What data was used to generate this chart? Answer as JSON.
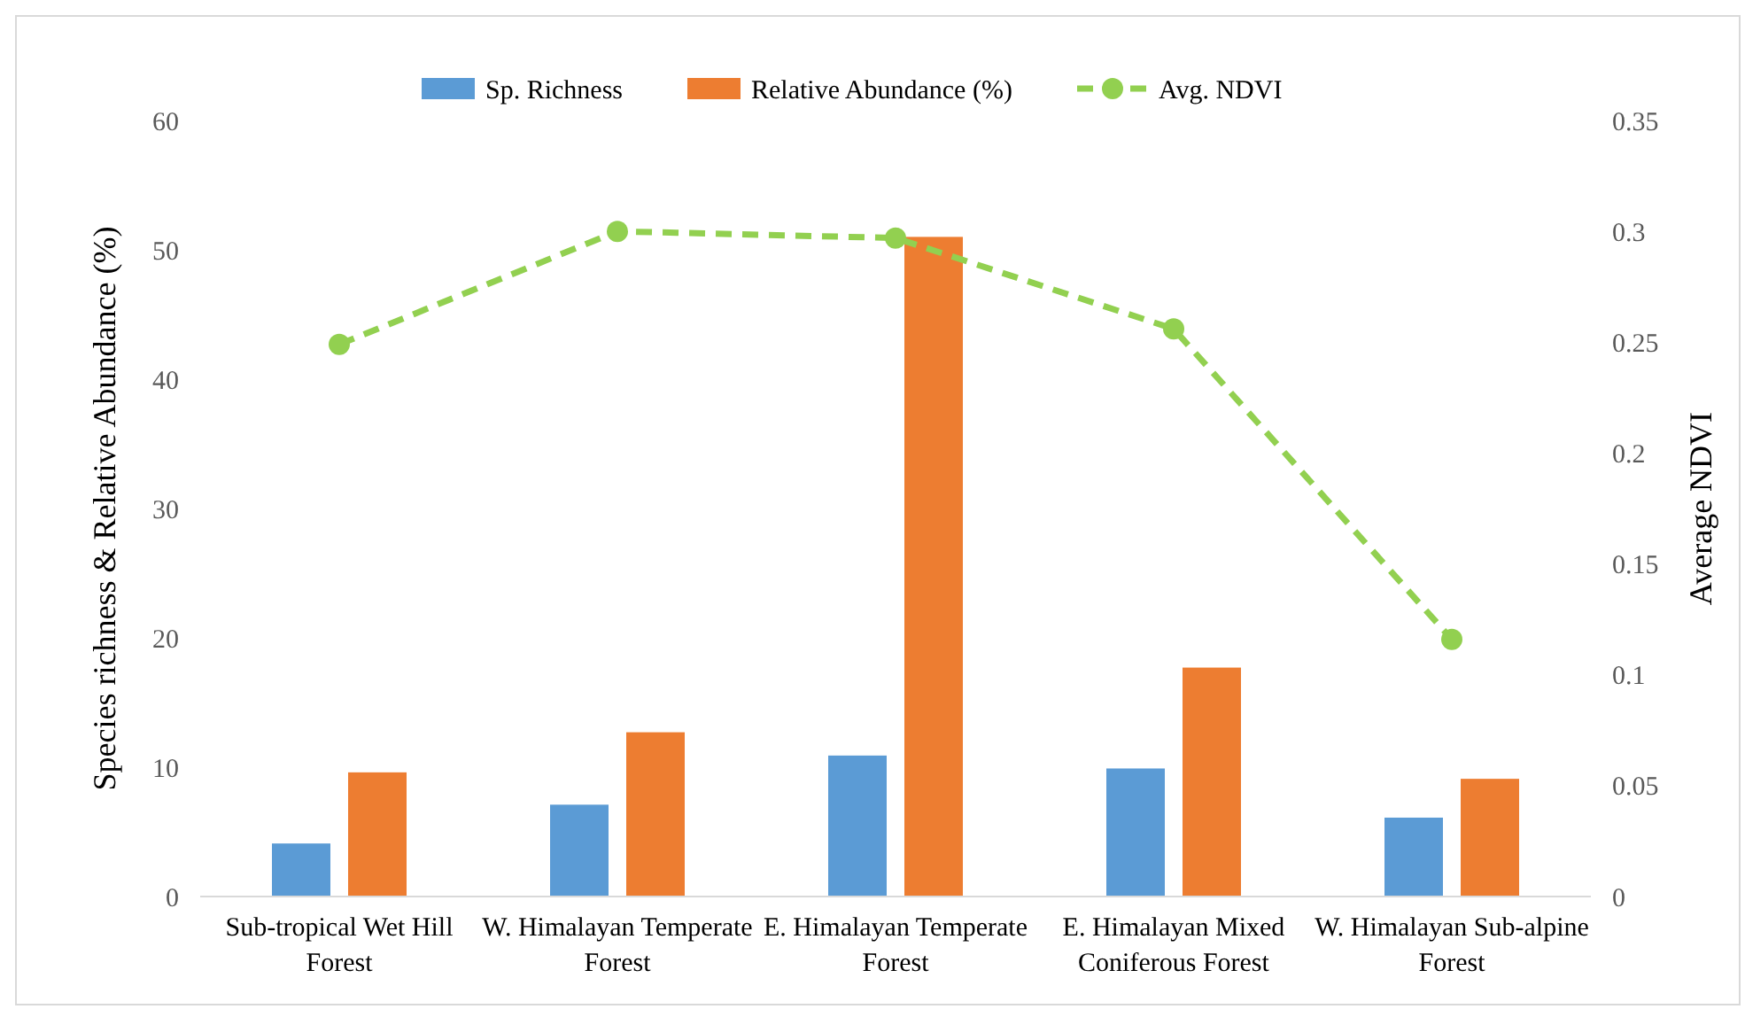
{
  "chart_data": {
    "type": "bar",
    "categories": [
      "Sub-tropical Wet Hill Forest",
      "W. Himalayan Temperate Forest",
      "E. Himalayan Temperate Forest",
      "E. Himalayan Mixed Coniferous Forest",
      "W. Himalayan Sub-alpine Forest"
    ],
    "series": [
      {
        "name": "Sp. Richness",
        "color": "#5b9bd5",
        "values": [
          4.1,
          7.1,
          10.9,
          9.9,
          6.1
        ]
      },
      {
        "name": "Relative Abundance (%)",
        "color": "#ed7d31",
        "values": [
          9.6,
          12.7,
          51,
          17.7,
          9.1
        ]
      },
      {
        "name": "Avg. NDVI",
        "type": "line",
        "axis": "y2",
        "color": "#92d050",
        "line_style": "dashed",
        "marker": "circle",
        "values": [
          0.249,
          0.3,
          0.297,
          0.256,
          0.116
        ]
      }
    ],
    "ylabel": "Species richness & Relative Abundance (%)",
    "y2label": "Average NDVI",
    "ylim": [
      0,
      60
    ],
    "yticks": [
      0,
      10,
      20,
      30,
      40,
      50,
      60
    ],
    "y2lim": [
      0,
      0.35
    ],
    "y2ticks": [
      0,
      0.05,
      0.1,
      0.15,
      0.2,
      0.25,
      0.3,
      0.35
    ],
    "legend": "top",
    "grid": false
  }
}
